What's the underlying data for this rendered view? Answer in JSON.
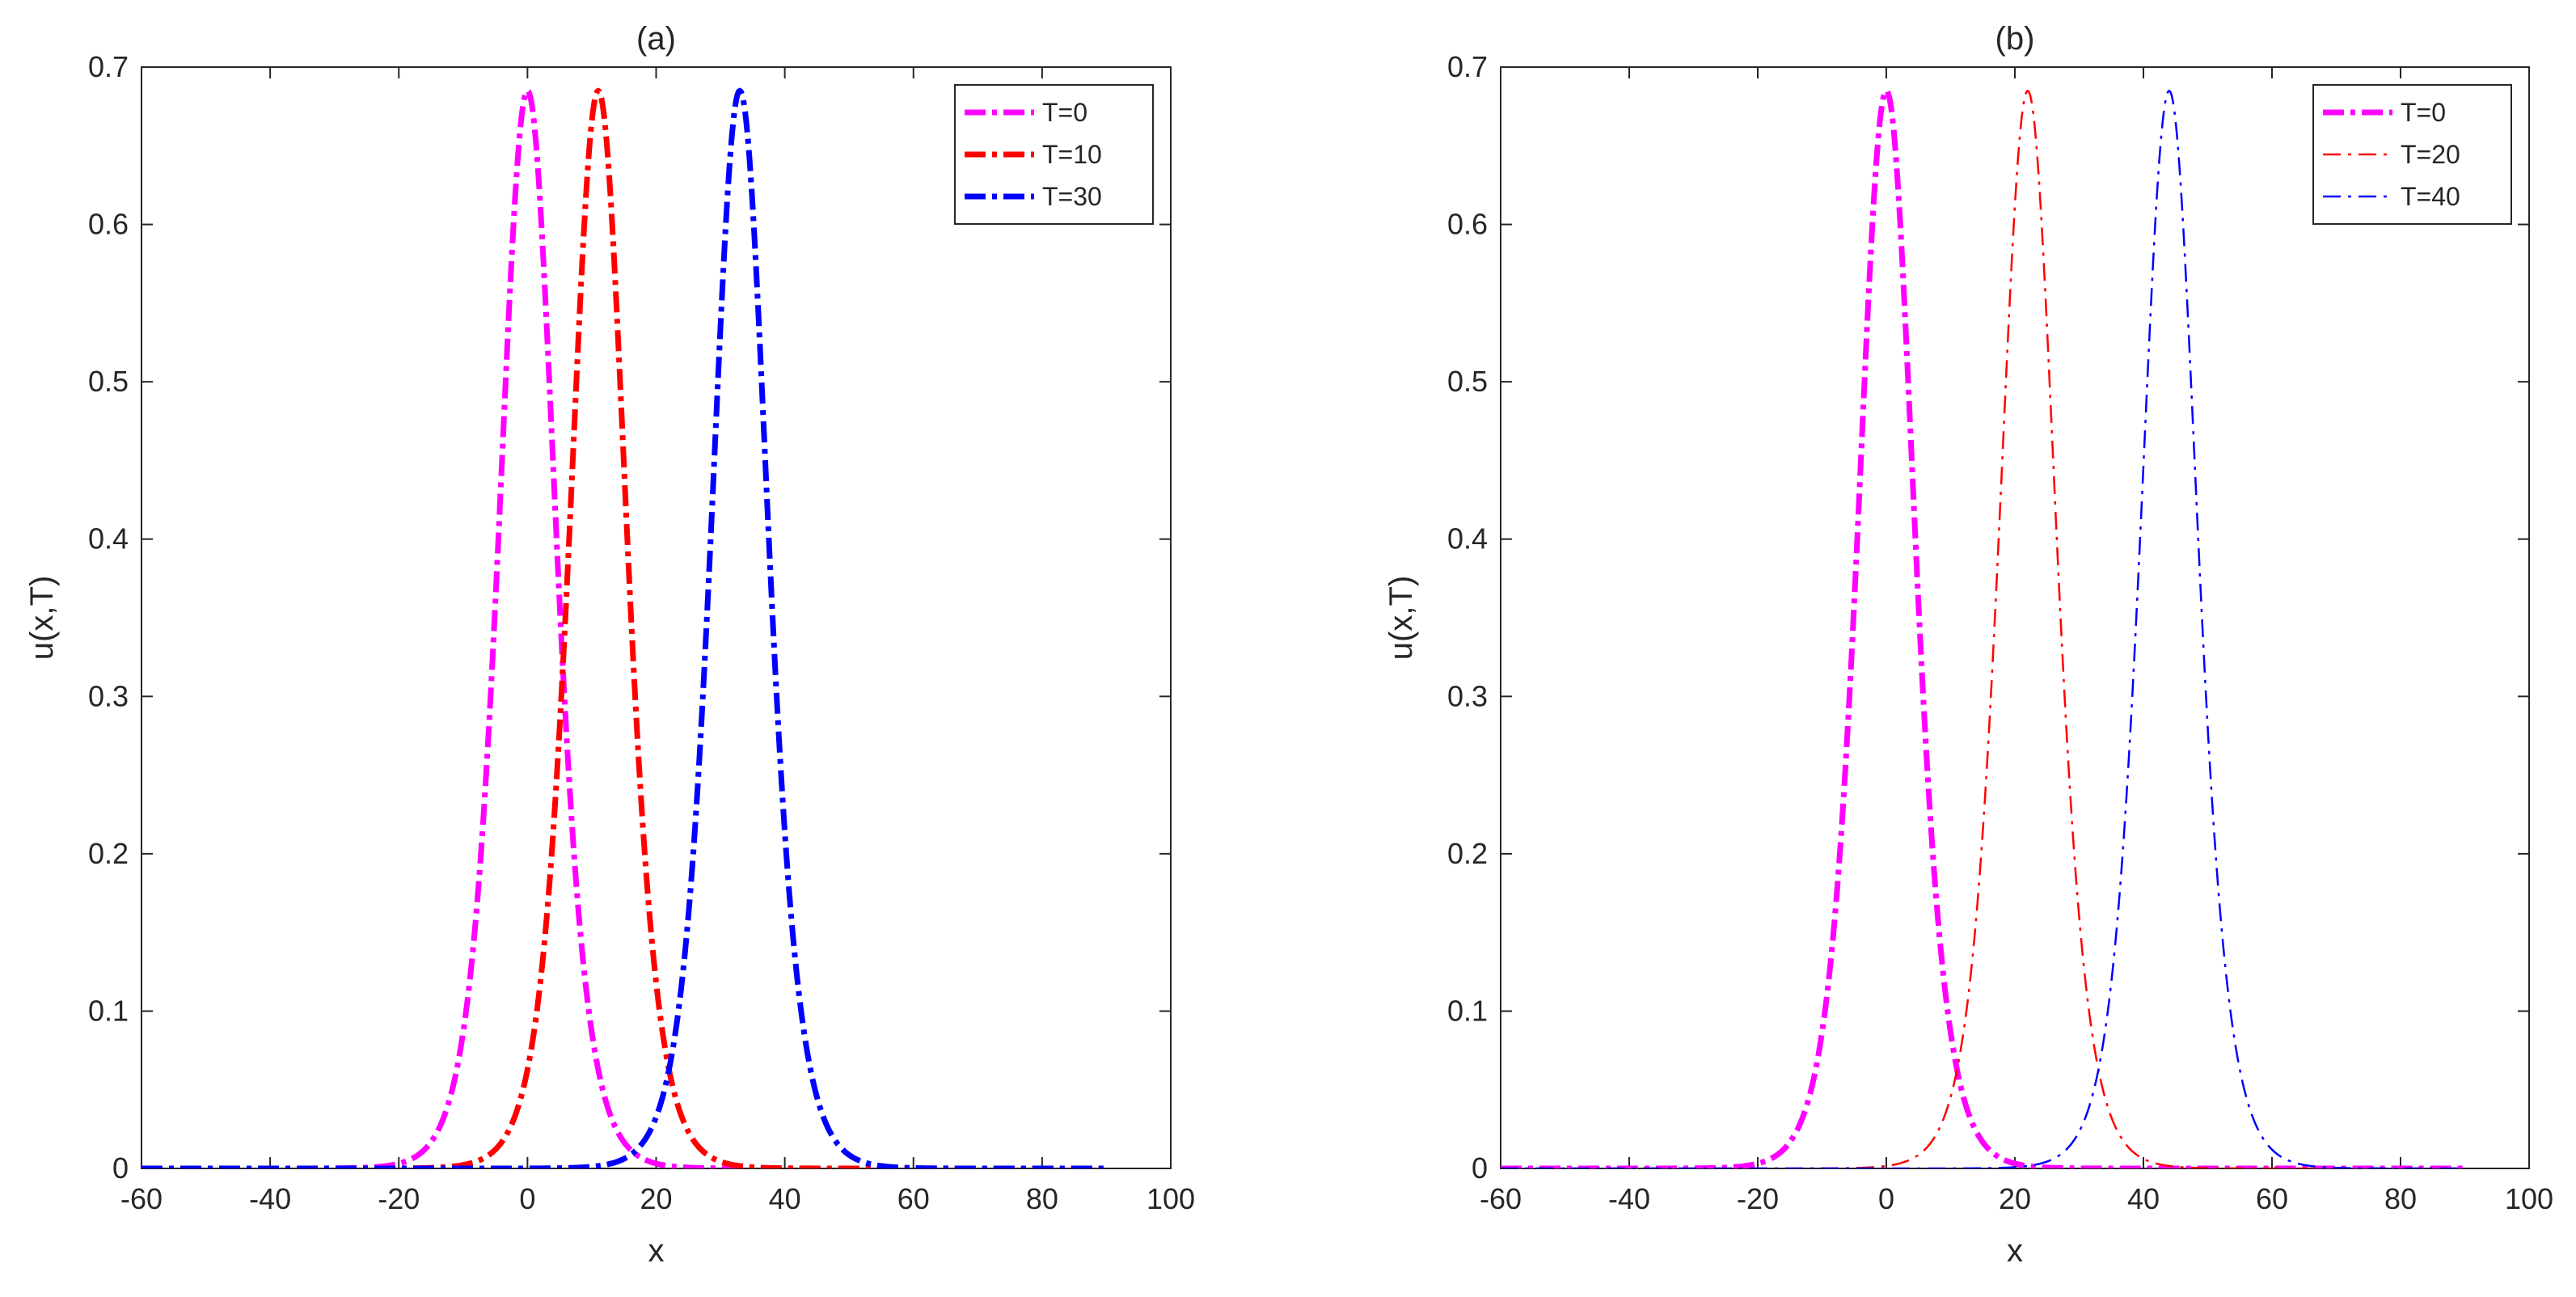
{
  "chart_data": [
    {
      "type": "line",
      "title": "(a)",
      "xlabel": "x",
      "ylabel": "u(x,T)",
      "xlim": [
        -60,
        100
      ],
      "ylim": [
        0,
        0.7
      ],
      "xticks": [
        -60,
        -40,
        -20,
        0,
        20,
        40,
        60,
        80,
        100
      ],
      "yticks": [
        0,
        0.1,
        0.2,
        0.3,
        0.4,
        0.5,
        0.6,
        0.7
      ],
      "xtick_labels": [
        "-60",
        "-40",
        "-20",
        "0",
        "20",
        "40",
        "60",
        "80",
        "100"
      ],
      "ytick_labels": [
        "0",
        "0.1",
        "0.2",
        "0.3",
        "0.4",
        "0.5",
        "0.6",
        "0.7"
      ],
      "grid": false,
      "legend_position": "top-right",
      "x_domain": [
        -60,
        90
      ],
      "series": [
        {
          "name": "T=0",
          "color": "#ff00ff",
          "style": "dash-dot",
          "weight": "thick",
          "amplitude": 0.685,
          "center": 0,
          "width": 5.9
        },
        {
          "name": "T=10",
          "color": "#ff0000",
          "style": "dash-dot",
          "weight": "thick",
          "amplitude": 0.685,
          "center": 11,
          "width": 5.9
        },
        {
          "name": "T=30",
          "color": "#0000ff",
          "style": "dash-dot",
          "weight": "thick",
          "amplitude": 0.685,
          "center": 33,
          "width": 5.9
        }
      ]
    },
    {
      "type": "line",
      "title": "(b)",
      "xlabel": "x",
      "ylabel": "u(x,T)",
      "xlim": [
        -60,
        100
      ],
      "ylim": [
        0,
        0.7
      ],
      "xticks": [
        -60,
        -40,
        -20,
        0,
        20,
        40,
        60,
        80,
        100
      ],
      "yticks": [
        0,
        0.1,
        0.2,
        0.3,
        0.4,
        0.5,
        0.6,
        0.7
      ],
      "xtick_labels": [
        "-60",
        "-40",
        "-20",
        "0",
        "20",
        "40",
        "60",
        "80",
        "100"
      ],
      "ytick_labels": [
        "0",
        "0.1",
        "0.2",
        "0.3",
        "0.4",
        "0.5",
        "0.6",
        "0.7"
      ],
      "grid": false,
      "legend_position": "top-right",
      "x_domain": [
        -60,
        90
      ],
      "series": [
        {
          "name": "T=0",
          "color": "#ff00ff",
          "style": "dash-dot",
          "weight": "thick",
          "amplitude": 0.685,
          "center": 0,
          "width": 5.9
        },
        {
          "name": "T=20",
          "color": "#ff0000",
          "style": "dash-dot",
          "weight": "thin",
          "amplitude": 0.685,
          "center": 22,
          "width": 5.9
        },
        {
          "name": "T=40",
          "color": "#0000ff",
          "style": "dash-dot",
          "weight": "thin",
          "amplitude": 0.685,
          "center": 44,
          "width": 5.9
        }
      ]
    }
  ]
}
